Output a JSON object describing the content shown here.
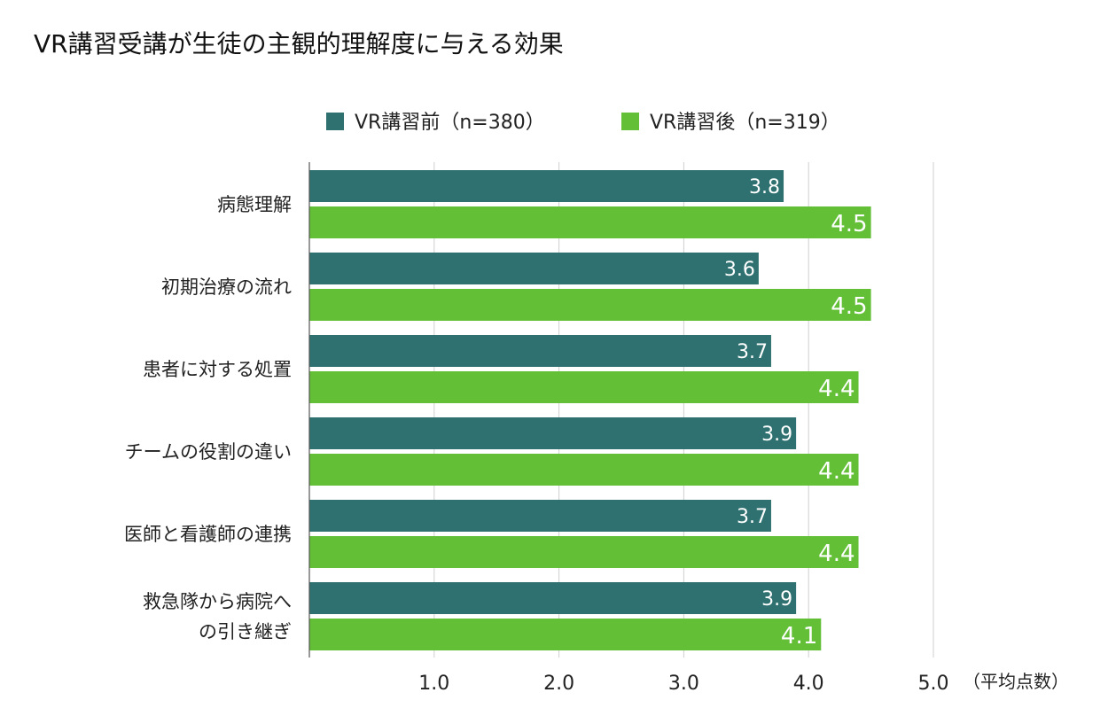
{
  "chart_data": {
    "type": "bar",
    "orientation": "horizontal",
    "title": "VR講習受講が生徒の主観的理解度に与える効果",
    "categories": [
      "病態理解",
      "初期治療の流れ",
      "患者に対する処置",
      "チームの役割の違い",
      "医師と看護師の連携",
      "救急隊から病院への引き継ぎ"
    ],
    "category_lines": [
      [
        "病態理解"
      ],
      [
        "初期治療の流れ"
      ],
      [
        "患者に対する処置"
      ],
      [
        "チームの役割の違い"
      ],
      [
        "医師と看護師の連携"
      ],
      [
        "救急隊から病院へ",
        "の引き継ぎ"
      ]
    ],
    "series": [
      {
        "name": "VR講習前（n=380）",
        "color": "#2e7170",
        "values": [
          3.8,
          3.6,
          3.7,
          3.9,
          3.7,
          3.9
        ]
      },
      {
        "name": "VR講習後（n=319）",
        "color": "#62bf36",
        "values": [
          4.5,
          4.5,
          4.4,
          4.4,
          4.4,
          4.1
        ]
      }
    ],
    "xlim": [
      0,
      5
    ],
    "xticks": [
      1,
      2,
      3,
      4,
      5
    ],
    "tick_labels": [
      "1.0",
      "2.0",
      "3.0",
      "4.0",
      "5.0"
    ],
    "xlabel": "（平均点数）",
    "legend_position": "top",
    "grid": true
  }
}
